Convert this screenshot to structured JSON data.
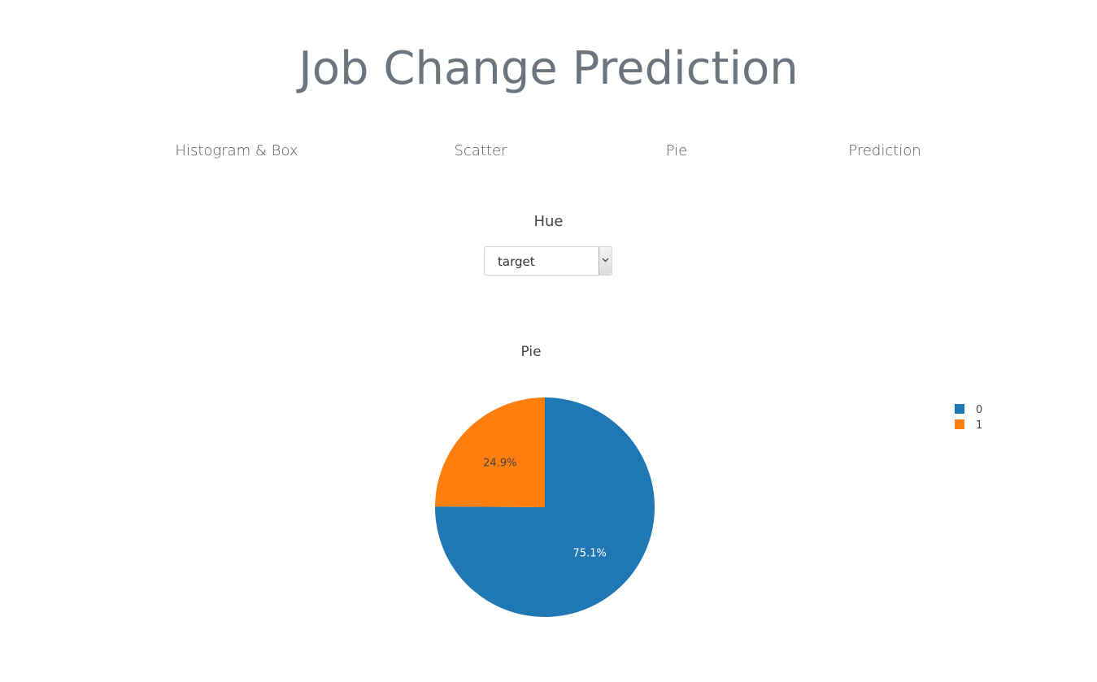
{
  "header": {
    "title": "Job Change Prediction"
  },
  "tabs": [
    {
      "label": "Histogram & Box"
    },
    {
      "label": "Scatter"
    },
    {
      "label": "Pie"
    },
    {
      "label": "Prediction"
    }
  ],
  "controls": {
    "hue_label": "Hue",
    "hue_selected": "target"
  },
  "chart_data": {
    "type": "pie",
    "title": "Pie",
    "labels": [
      "0",
      "1"
    ],
    "values": [
      75.1,
      24.9
    ],
    "percent_labels": [
      "75.1%",
      "24.9%"
    ],
    "colors": [
      "#1f77b4",
      "#ff7f0e"
    ],
    "legend_position": "right",
    "legend": [
      "0",
      "1"
    ]
  }
}
